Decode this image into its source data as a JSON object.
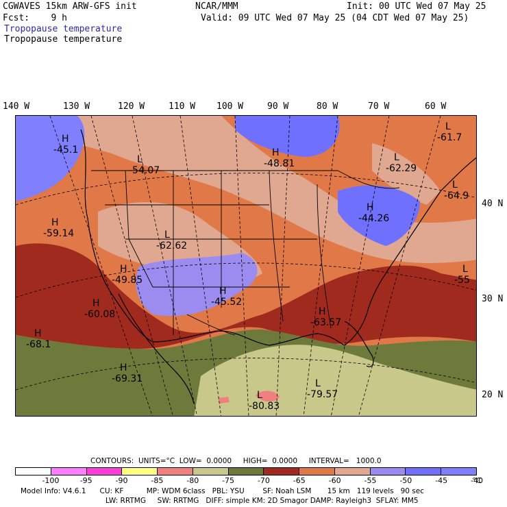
{
  "header": {
    "line1_left": "CGWAVES 15km ARW-GFS init",
    "line1_center": "NCAR/MMM",
    "line1_right": "Init: 00 UTC Wed 07 May 25",
    "line2_left": "Fcst:    9 h",
    "line2_right": "Valid: 09 UTC Wed 07 May 25 (04 CDT Wed 07 May 25)",
    "line3": "Tropopause temperature",
    "line4": "Tropopause temperature"
  },
  "longitudes": [
    "140 W",
    "130 W",
    "120 W",
    "110 W",
    "100 W",
    "90 W",
    "80 W",
    "70 W",
    "60 W"
  ],
  "latitudes": [
    "40 N",
    "30 N",
    "20 N"
  ],
  "map_labels": [
    {
      "type": "H",
      "value": "-45.1"
    },
    {
      "type": "L",
      "value": "-54.07"
    },
    {
      "type": "H",
      "value": "-48.81"
    },
    {
      "type": "L",
      "value": "-61.7"
    },
    {
      "type": "L",
      "value": "-62.29"
    },
    {
      "type": "L",
      "value": "-64.9"
    },
    {
      "type": "H",
      "value": "-44.26"
    },
    {
      "type": "H",
      "value": "-59.14"
    },
    {
      "type": "L",
      "value": "-62.62"
    },
    {
      "type": "H",
      "value": "-49.85"
    },
    {
      "type": "H",
      "value": "-45.52"
    },
    {
      "type": "H",
      "value": "-60.08"
    },
    {
      "type": "H",
      "value": "-63.57"
    },
    {
      "type": "L",
      "value": "-55"
    },
    {
      "type": "H",
      "value": "-68.1"
    },
    {
      "type": "H",
      "value": "-69.31"
    },
    {
      "type": "L",
      "value": "-80.83"
    },
    {
      "type": "L",
      "value": "-79.57"
    }
  ],
  "contour_info": "CONTOURS:  UNITS=°C  LOW=  0.0000     HIGH=  0.0000     INTERVAL=   1000.0",
  "colorbar": {
    "colors": [
      "#ffffff",
      "#ff80ff",
      "#ff40d8",
      "#ffff80",
      "#f08080",
      "#c8c88a",
      "#6e7a3c",
      "#a02a1e",
      "#e07848",
      "#e0a890",
      "#9c8cf0",
      "#7070ff",
      "#8080ff"
    ],
    "labels": [
      "-100",
      "-95",
      "-90",
      "-85",
      "-80",
      "-75",
      "-70",
      "-65",
      "-60",
      "-55",
      "-50",
      "-45",
      "-40",
      "°C"
    ]
  },
  "footer": {
    "line1": "Model Info: V4.6.1      CU: KF          MP: WDM 6class   PBL: YSU        SF: Noah LSM       15 km   119 levels   90 sec",
    "line2": "LW: RRTMG     SW: RRTMG   DIFF: simple KM: 2D Smagor DAMP: Rayleigh3  SFLAY: MM5"
  }
}
